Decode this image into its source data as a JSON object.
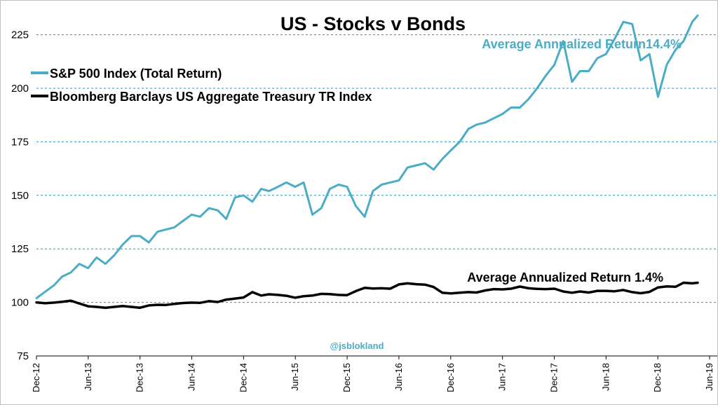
{
  "chart_data": {
    "type": "line",
    "title": "US - Stocks v Bonds",
    "ylim": [
      75,
      235
    ],
    "y_ticks": [
      75,
      100,
      125,
      150,
      175,
      200,
      225
    ],
    "x_ticks": [
      "Dec-12",
      "Jun-13",
      "Dec-13",
      "Jun-14",
      "Dec-14",
      "Jun-15",
      "Dec-15",
      "Jun-16",
      "Dec-16",
      "Jun-17",
      "Dec-17",
      "Jun-18",
      "Dec-18",
      "Jun-19"
    ],
    "x_range": [
      "2012-12-01",
      "2019-06-01"
    ],
    "grid": "horizontal dashed",
    "legend_position": "top-left",
    "series": [
      {
        "name": "S&P 500 Index (Total Return)",
        "color": "#4bacc6",
        "points": [
          [
            "2012-12-01",
            102
          ],
          [
            "2013-01-01",
            105
          ],
          [
            "2013-02-01",
            108
          ],
          [
            "2013-03-01",
            112
          ],
          [
            "2013-04-01",
            114
          ],
          [
            "2013-05-01",
            118
          ],
          [
            "2013-06-01",
            116
          ],
          [
            "2013-07-01",
            121
          ],
          [
            "2013-08-01",
            118
          ],
          [
            "2013-09-01",
            122
          ],
          [
            "2013-10-01",
            127
          ],
          [
            "2013-11-01",
            131
          ],
          [
            "2013-12-01",
            131
          ],
          [
            "2014-01-01",
            128
          ],
          [
            "2014-02-01",
            133
          ],
          [
            "2014-03-01",
            134
          ],
          [
            "2014-04-01",
            135
          ],
          [
            "2014-05-01",
            138
          ],
          [
            "2014-06-01",
            141
          ],
          [
            "2014-07-01",
            140
          ],
          [
            "2014-08-01",
            144
          ],
          [
            "2014-09-01",
            143
          ],
          [
            "2014-10-01",
            139
          ],
          [
            "2014-11-01",
            149
          ],
          [
            "2014-12-01",
            150
          ],
          [
            "2015-01-01",
            147
          ],
          [
            "2015-02-01",
            153
          ],
          [
            "2015-03-01",
            152
          ],
          [
            "2015-04-01",
            154
          ],
          [
            "2015-05-01",
            156
          ],
          [
            "2015-06-01",
            154
          ],
          [
            "2015-07-01",
            156
          ],
          [
            "2015-08-01",
            141
          ],
          [
            "2015-09-01",
            144
          ],
          [
            "2015-10-01",
            153
          ],
          [
            "2015-11-01",
            155
          ],
          [
            "2015-12-01",
            154
          ],
          [
            "2016-01-01",
            145
          ],
          [
            "2016-02-01",
            140
          ],
          [
            "2016-03-01",
            152
          ],
          [
            "2016-04-01",
            155
          ],
          [
            "2016-05-01",
            156
          ],
          [
            "2016-06-01",
            157
          ],
          [
            "2016-07-01",
            163
          ],
          [
            "2016-08-01",
            164
          ],
          [
            "2016-09-01",
            165
          ],
          [
            "2016-10-01",
            162
          ],
          [
            "2016-11-01",
            167
          ],
          [
            "2016-12-01",
            171
          ],
          [
            "2017-01-01",
            175
          ],
          [
            "2017-02-01",
            181
          ],
          [
            "2017-03-01",
            183
          ],
          [
            "2017-04-01",
            184
          ],
          [
            "2017-05-01",
            186
          ],
          [
            "2017-06-01",
            188
          ],
          [
            "2017-07-01",
            191
          ],
          [
            "2017-08-01",
            191
          ],
          [
            "2017-09-01",
            195
          ],
          [
            "2017-10-01",
            200
          ],
          [
            "2017-11-01",
            206
          ],
          [
            "2017-12-01",
            211
          ],
          [
            "2018-01-01",
            222
          ],
          [
            "2018-02-01",
            203
          ],
          [
            "2018-03-01",
            208
          ],
          [
            "2018-04-01",
            208
          ],
          [
            "2018-05-01",
            214
          ],
          [
            "2018-06-01",
            216
          ],
          [
            "2018-07-01",
            223
          ],
          [
            "2018-08-01",
            231
          ],
          [
            "2018-09-01",
            230
          ],
          [
            "2018-10-01",
            213
          ],
          [
            "2018-11-01",
            216
          ],
          [
            "2018-12-01",
            196
          ],
          [
            "2019-01-01",
            211
          ],
          [
            "2019-02-01",
            218
          ],
          [
            "2019-03-01",
            222
          ],
          [
            "2019-04-01",
            231
          ],
          [
            "2019-04-20",
            234
          ]
        ]
      },
      {
        "name": "Bloomberg Barclays US Aggregate Treasury TR Index",
        "color": "#000000",
        "points": [
          [
            "2012-12-01",
            100
          ],
          [
            "2013-01-01",
            99.6
          ],
          [
            "2013-02-01",
            99.9
          ],
          [
            "2013-03-01",
            100.3
          ],
          [
            "2013-04-01",
            100.8
          ],
          [
            "2013-05-01",
            99.5
          ],
          [
            "2013-06-01",
            98.2
          ],
          [
            "2013-07-01",
            97.9
          ],
          [
            "2013-08-01",
            97.5
          ],
          [
            "2013-09-01",
            97.9
          ],
          [
            "2013-10-01",
            98.3
          ],
          [
            "2013-11-01",
            97.9
          ],
          [
            "2013-12-01",
            97.5
          ],
          [
            "2014-01-01",
            98.6
          ],
          [
            "2014-02-01",
            98.9
          ],
          [
            "2014-03-01",
            98.8
          ],
          [
            "2014-04-01",
            99.3
          ],
          [
            "2014-05-01",
            99.7
          ],
          [
            "2014-06-01",
            99.9
          ],
          [
            "2014-07-01",
            99.8
          ],
          [
            "2014-08-01",
            100.6
          ],
          [
            "2014-09-01",
            100.2
          ],
          [
            "2014-10-01",
            101.3
          ],
          [
            "2014-11-01",
            101.8
          ],
          [
            "2014-12-01",
            102.3
          ],
          [
            "2015-01-01",
            104.8
          ],
          [
            "2015-02-01",
            103.2
          ],
          [
            "2015-03-01",
            103.8
          ],
          [
            "2015-04-01",
            103.5
          ],
          [
            "2015-05-01",
            103.1
          ],
          [
            "2015-06-01",
            102.2
          ],
          [
            "2015-07-01",
            102.9
          ],
          [
            "2015-08-01",
            103.2
          ],
          [
            "2015-09-01",
            104.0
          ],
          [
            "2015-10-01",
            103.9
          ],
          [
            "2015-11-01",
            103.5
          ],
          [
            "2015-12-01",
            103.4
          ],
          [
            "2016-01-01",
            105.3
          ],
          [
            "2016-02-01",
            106.8
          ],
          [
            "2016-03-01",
            106.5
          ],
          [
            "2016-04-01",
            106.6
          ],
          [
            "2016-05-01",
            106.4
          ],
          [
            "2016-06-01",
            108.4
          ],
          [
            "2016-07-01",
            108.9
          ],
          [
            "2016-08-01",
            108.5
          ],
          [
            "2016-09-01",
            108.3
          ],
          [
            "2016-10-01",
            107.2
          ],
          [
            "2016-11-01",
            104.5
          ],
          [
            "2016-12-01",
            104.2
          ],
          [
            "2017-01-01",
            104.5
          ],
          [
            "2017-02-01",
            104.8
          ],
          [
            "2017-03-01",
            104.6
          ],
          [
            "2017-04-01",
            105.6
          ],
          [
            "2017-05-01",
            106.2
          ],
          [
            "2017-06-01",
            106.1
          ],
          [
            "2017-07-01",
            106.4
          ],
          [
            "2017-08-01",
            107.4
          ],
          [
            "2017-09-01",
            106.6
          ],
          [
            "2017-10-01",
            106.3
          ],
          [
            "2017-11-01",
            106.2
          ],
          [
            "2017-12-01",
            106.4
          ],
          [
            "2018-01-01",
            105.1
          ],
          [
            "2018-02-01",
            104.5
          ],
          [
            "2018-03-01",
            105.1
          ],
          [
            "2018-04-01",
            104.6
          ],
          [
            "2018-05-01",
            105.4
          ],
          [
            "2018-06-01",
            105.4
          ],
          [
            "2018-07-01",
            105.2
          ],
          [
            "2018-08-01",
            105.8
          ],
          [
            "2018-09-01",
            104.8
          ],
          [
            "2018-10-01",
            104.3
          ],
          [
            "2018-11-01",
            104.9
          ],
          [
            "2018-12-01",
            107.0
          ],
          [
            "2019-01-01",
            107.5
          ],
          [
            "2019-02-01",
            107.3
          ],
          [
            "2019-03-01",
            109.2
          ],
          [
            "2019-04-01",
            108.9
          ],
          [
            "2019-04-20",
            109.2
          ]
        ]
      }
    ],
    "annotations": [
      {
        "text": "Average Annualized Return14.4%",
        "color": "#4bacc6",
        "near_series": 0
      },
      {
        "text": "Average Annualized Return 1.4%",
        "color": "#000000",
        "near_series": 1
      }
    ],
    "watermark": {
      "text": "@jsblokland",
      "color": "#4bacc6"
    }
  }
}
